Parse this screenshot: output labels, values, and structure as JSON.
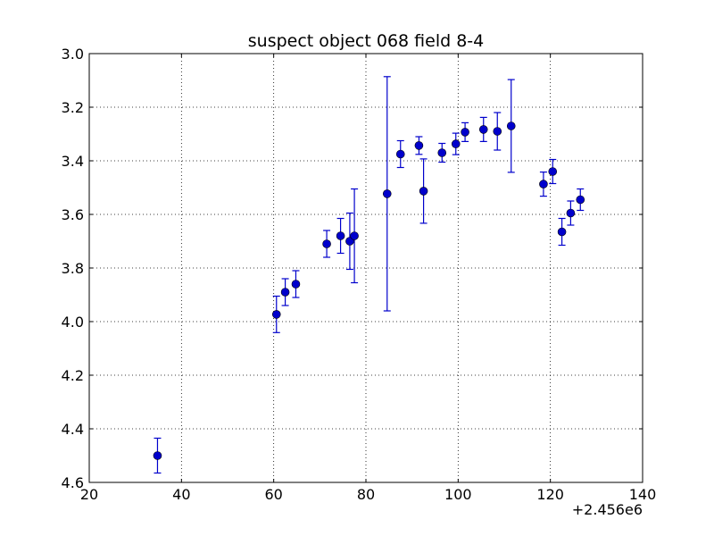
{
  "chart_data": {
    "type": "scatter",
    "title": "suspect object 068 field 8-4",
    "xlabel": "",
    "ylabel": "",
    "x_offset_label": "+2.456e6",
    "xlim": [
      20,
      140
    ],
    "ylim": [
      3.0,
      4.6
    ],
    "y_inverted": true,
    "grid": true,
    "x_ticks": [
      20,
      40,
      60,
      80,
      100,
      120,
      140
    ],
    "y_ticks": [
      3.0,
      3.2,
      3.4,
      3.6,
      3.8,
      4.0,
      4.2,
      4.4,
      4.6
    ],
    "x_tick_labels": [
      "20",
      "40",
      "60",
      "80",
      "100",
      "120",
      "140"
    ],
    "y_tick_labels": [
      "3.0",
      "3.2",
      "3.4",
      "3.6",
      "3.8",
      "4.0",
      "4.2",
      "4.4",
      "4.6"
    ],
    "marker_color": "#0000cc",
    "series": [
      {
        "points": [
          {
            "x": 34.8,
            "y": 4.5,
            "err": 0.065
          },
          {
            "x": 60.6,
            "y": 3.973,
            "err": 0.068
          },
          {
            "x": 62.5,
            "y": 3.89,
            "err": 0.05
          },
          {
            "x": 64.8,
            "y": 3.86,
            "err": 0.05
          },
          {
            "x": 71.5,
            "y": 3.71,
            "err": 0.05
          },
          {
            "x": 74.5,
            "y": 3.68,
            "err": 0.065
          },
          {
            "x": 76.5,
            "y": 3.7,
            "err": 0.105
          },
          {
            "x": 77.5,
            "y": 3.68,
            "err": 0.175
          },
          {
            "x": 84.6,
            "y": 3.523,
            "err": 0.437
          },
          {
            "x": 87.5,
            "y": 3.375,
            "err": 0.05
          },
          {
            "x": 91.5,
            "y": 3.343,
            "err": 0.033
          },
          {
            "x": 92.5,
            "y": 3.513,
            "err": 0.12
          },
          {
            "x": 96.5,
            "y": 3.37,
            "err": 0.035
          },
          {
            "x": 99.5,
            "y": 3.337,
            "err": 0.04
          },
          {
            "x": 101.5,
            "y": 3.293,
            "err": 0.035
          },
          {
            "x": 105.5,
            "y": 3.283,
            "err": 0.045
          },
          {
            "x": 108.5,
            "y": 3.29,
            "err": 0.07
          },
          {
            "x": 111.5,
            "y": 3.27,
            "err": 0.173
          },
          {
            "x": 118.5,
            "y": 3.487,
            "err": 0.045
          },
          {
            "x": 120.5,
            "y": 3.44,
            "err": 0.045
          },
          {
            "x": 122.5,
            "y": 3.665,
            "err": 0.05
          },
          {
            "x": 124.4,
            "y": 3.595,
            "err": 0.045
          },
          {
            "x": 126.5,
            "y": 3.545,
            "err": 0.04
          }
        ]
      }
    ]
  }
}
